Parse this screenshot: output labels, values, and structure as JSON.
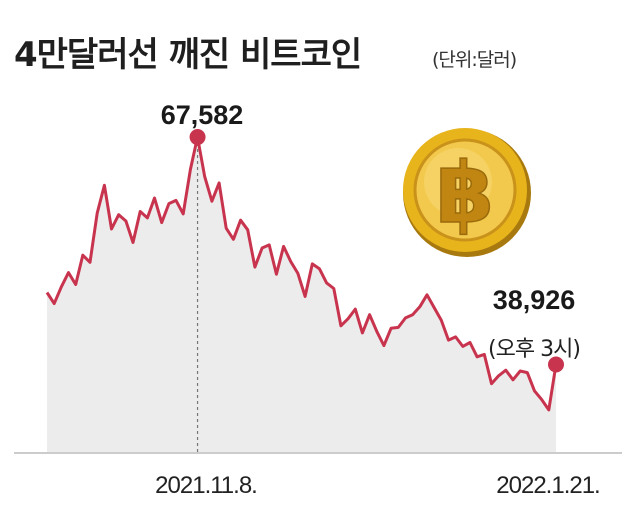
{
  "title": "4만달러선 깨진 비트코인",
  "unit_note": "(단위:달러)",
  "colors": {
    "line": "#c8344e",
    "area": "#ececec",
    "marker": "#c8344e",
    "axis": "#cccccc",
    "guide": "#777777",
    "coin_gold": "#e8b41c"
  },
  "icons": {
    "coin": "bitcoin-coin-icon"
  },
  "chart_data": {
    "type": "area",
    "title": "4만달러선 깨진 비트코인",
    "unit": "(단위:달러)",
    "ylim": [
      25000,
      72000
    ],
    "grid": false,
    "legend": "none",
    "x_tick_labels": [
      "2021.11.8.",
      "2022.1.21."
    ],
    "peak": {
      "label": "67,582",
      "value": 67582,
      "date": "2021.11.8.",
      "index": 21
    },
    "end": {
      "label": "38,926",
      "note": "(오후 3시)",
      "value": 38926,
      "date": "2022.1.21.",
      "index": 71
    },
    "values": [
      48000,
      46600,
      48700,
      50500,
      49000,
      52700,
      51800,
      58000,
      61500,
      56000,
      57800,
      57000,
      54300,
      58200,
      57400,
      59900,
      56800,
      59200,
      59600,
      57900,
      63500,
      67582,
      62600,
      59500,
      61800,
      56100,
      54700,
      57100,
      55900,
      51200,
      53600,
      54000,
      50300,
      53800,
      51900,
      50400,
      47500,
      51600,
      51000,
      49200,
      48500,
      43800,
      44700,
      45900,
      42900,
      45200,
      43100,
      41300,
      43500,
      43600,
      44800,
      45200,
      46200,
      47700,
      46100,
      44500,
      42000,
      42400,
      41200,
      41700,
      39900,
      40200,
      36500,
      37500,
      38200,
      37000,
      38100,
      37900,
      35600,
      34500,
      33200,
      38926
    ]
  }
}
